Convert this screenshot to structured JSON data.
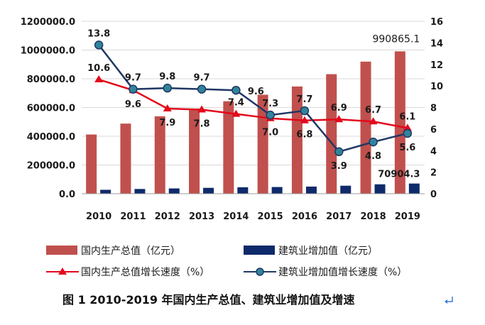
{
  "colors": {
    "gdp_bar": "#C0504D",
    "construction_bar": "#0F2A6B",
    "gdp_growth_line": "#E3081C",
    "construction_growth_line": "#1F3864",
    "construction_growth_marker": "#31849B"
  },
  "chart_data": {
    "type": "bar",
    "categories": [
      "2010",
      "2011",
      "2012",
      "2013",
      "2014",
      "2015",
      "2016",
      "2017",
      "2018",
      "2019"
    ],
    "series": [
      {
        "name": "国内生产总值（亿元）",
        "type": "bar",
        "axis": "left",
        "values": [
          412119,
          487940,
          538580,
          592963,
          643563,
          688858,
          746395,
          832035,
          919281,
          990865.1
        ]
      },
      {
        "name": "建筑业增加值（亿元）",
        "type": "bar",
        "axis": "left",
        "values": [
          27259,
          32926,
          36896,
          40897,
          44881,
          46627,
          49703,
          55690,
          65493,
          70904.3
        ]
      },
      {
        "name": "国内生产总值增长速度（%）",
        "type": "line",
        "axis": "right",
        "values": [
          10.6,
          9.6,
          7.9,
          7.8,
          7.4,
          7.0,
          6.8,
          6.9,
          6.7,
          6.1
        ]
      },
      {
        "name": "建筑业增加值增长速度（%）",
        "type": "line",
        "axis": "right",
        "values": [
          13.8,
          9.7,
          9.8,
          9.7,
          9.6,
          7.3,
          7.7,
          3.9,
          4.8,
          5.6
        ]
      }
    ],
    "bar_labels": {
      "2019_gdp": "990865.1",
      "2019_construction": "70904.3"
    },
    "line_labels": {
      "gdp_growth": [
        "10.6",
        "9.6",
        "7.9",
        "7.8",
        "7.4",
        "7.0",
        "6.8",
        "6.9",
        "6.7",
        "6.1"
      ],
      "construction_growth": [
        "13.8",
        "9.7",
        "9.8",
        "9.7",
        "9.6",
        "7.3",
        "7.7",
        "3.9",
        "4.8",
        "5.6"
      ]
    },
    "left_axis": {
      "ylim": [
        0,
        1200000
      ],
      "ticks": [
        "0.0",
        "200000.0",
        "400000.0",
        "600000.0",
        "800000.0",
        "1000000.0",
        "1200000.0"
      ]
    },
    "right_axis": {
      "ylim": [
        0,
        16
      ],
      "ticks": [
        "0",
        "2",
        "4",
        "6",
        "8",
        "10",
        "12",
        "14",
        "16"
      ]
    },
    "grid": true,
    "legend_placement": "bottom",
    "caption": "图 1   2010-2019 年国内生产总值、建筑业增加值及增速"
  }
}
